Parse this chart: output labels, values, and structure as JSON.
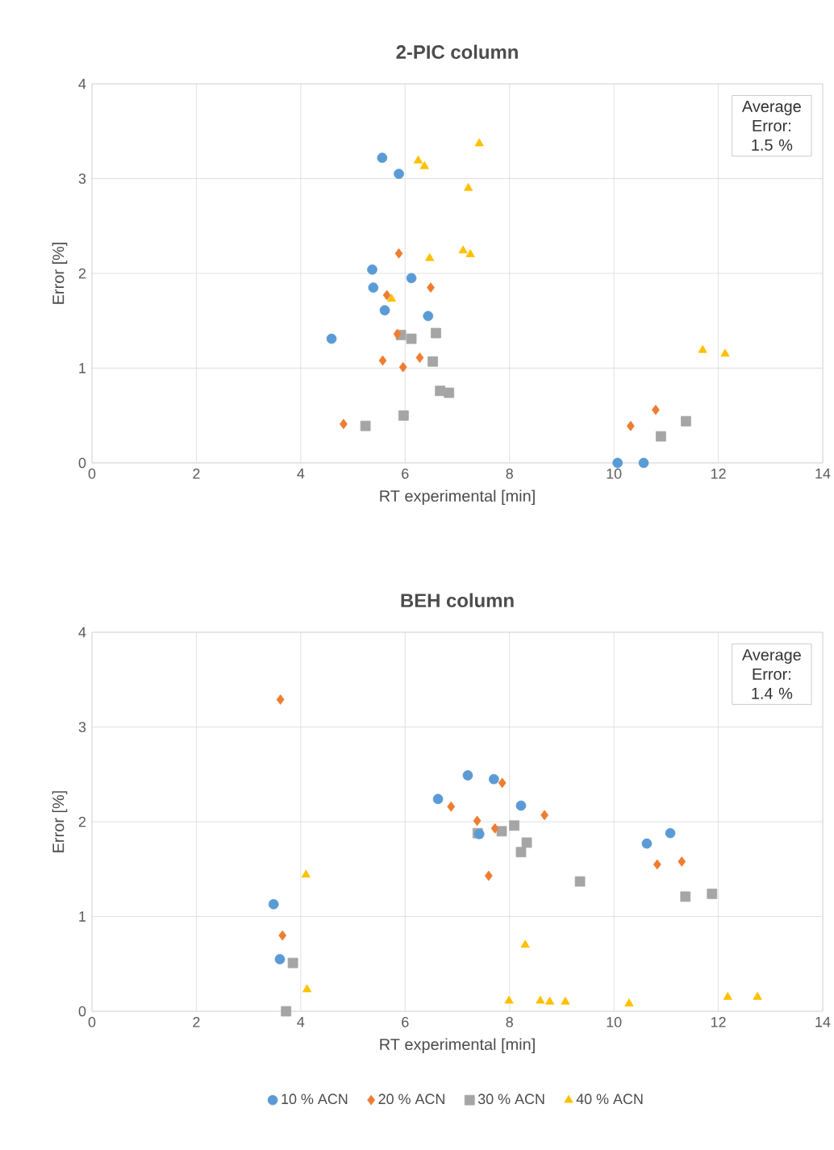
{
  "chart_data": [
    {
      "type": "scatter",
      "title": "2-PIC column",
      "xlabel": "RT experimental [min]",
      "ylabel": "Error [%]",
      "annotations": [
        "Average Error: 1.5 %"
      ],
      "xlim": [
        0,
        14
      ],
      "ylim": [
        0,
        4
      ],
      "xticks": [
        0,
        2,
        4,
        6,
        8,
        10,
        12,
        14
      ],
      "yticks": [
        0,
        1,
        2,
        3,
        4
      ],
      "grid": true,
      "legend": false,
      "series": [
        {
          "color": "#5b9bd5",
          "marker": "circle",
          "x": [
            5.56,
            5.88,
            5.37,
            5.39,
            6.12,
            5.61,
            6.44,
            4.59,
            10.07,
            10.57
          ],
          "values": [
            3.22,
            3.05,
            2.04,
            1.85,
            1.95,
            1.61,
            1.55,
            1.31,
            0,
            0
          ]
        },
        {
          "color": "#ed7d31",
          "marker": "diamond",
          "x": [
            5.88,
            6.49,
            5.65,
            5.57,
            6.28,
            5.96,
            4.82,
            10.32,
            10.8,
            5.85
          ],
          "values": [
            2.21,
            1.85,
            1.77,
            1.08,
            1.11,
            1.01,
            0.41,
            0.39,
            0.56,
            1.36
          ]
        },
        {
          "color": "#a5a5a5",
          "marker": "square",
          "x": [
            5.92,
            6.12,
            6.59,
            6.53,
            6.67,
            6.84,
            5.97,
            5.24,
            10.9,
            11.38
          ],
          "values": [
            1.35,
            1.31,
            1.37,
            1.07,
            0.76,
            0.74,
            0.5,
            0.39,
            0.28,
            0.44
          ]
        },
        {
          "color": "#ffc000",
          "marker": "triangle",
          "x": [
            7.42,
            6.25,
            6.37,
            7.21,
            6.47,
            7.11,
            7.25,
            5.74,
            11.7,
            12.13
          ],
          "values": [
            3.37,
            3.19,
            3.13,
            2.9,
            2.16,
            2.24,
            2.2,
            1.73,
            1.19,
            1.15
          ]
        }
      ]
    },
    {
      "type": "scatter",
      "title": "BEH column",
      "xlabel": "RT experimental [min]",
      "ylabel": "Error [%]",
      "annotations": [
        "Average Error: 1.4 %"
      ],
      "xlim": [
        0,
        14
      ],
      "ylim": [
        0,
        4
      ],
      "xticks": [
        0,
        2,
        4,
        6,
        8,
        10,
        12,
        14
      ],
      "yticks": [
        0,
        1,
        2,
        3,
        4
      ],
      "grid": true,
      "legend": "bottom",
      "series": [
        {
          "name": "10 % ACN",
          "color": "#5b9bd5",
          "marker": "circle",
          "x": [
            3.48,
            3.6,
            6.63,
            7.2,
            7.7,
            8.22,
            7.42,
            10.63,
            11.08
          ],
          "values": [
            1.13,
            0.55,
            2.24,
            2.49,
            2.45,
            2.17,
            1.87,
            1.77,
            1.88
          ]
        },
        {
          "name": "20 % ACN",
          "color": "#ed7d31",
          "marker": "diamond",
          "x": [
            3.61,
            3.65,
            6.88,
            7.38,
            7.86,
            7.72,
            7.6,
            8.67,
            10.83,
            11.3
          ],
          "values": [
            3.29,
            0.8,
            2.16,
            2.01,
            2.41,
            1.93,
            1.43,
            2.07,
            1.55,
            1.58
          ]
        },
        {
          "name": "30 % ACN",
          "color": "#a5a5a5",
          "marker": "square",
          "x": [
            3.72,
            3.85,
            7.39,
            7.85,
            8.09,
            8.22,
            8.33,
            9.35,
            11.37,
            11.88
          ],
          "values": [
            0,
            0.51,
            1.88,
            1.9,
            1.96,
            1.68,
            1.78,
            1.37,
            1.21,
            1.24
          ]
        },
        {
          "name": "40 % ACN",
          "color": "#ffc000",
          "marker": "triangle",
          "x": [
            4.1,
            4.12,
            8.3,
            7.99,
            8.59,
            8.77,
            9.07,
            10.29,
            12.18,
            12.75
          ],
          "values": [
            1.44,
            0.23,
            0.7,
            0.11,
            0.11,
            0.1,
            0.1,
            0.08,
            0.15,
            0.15
          ]
        }
      ]
    }
  ]
}
